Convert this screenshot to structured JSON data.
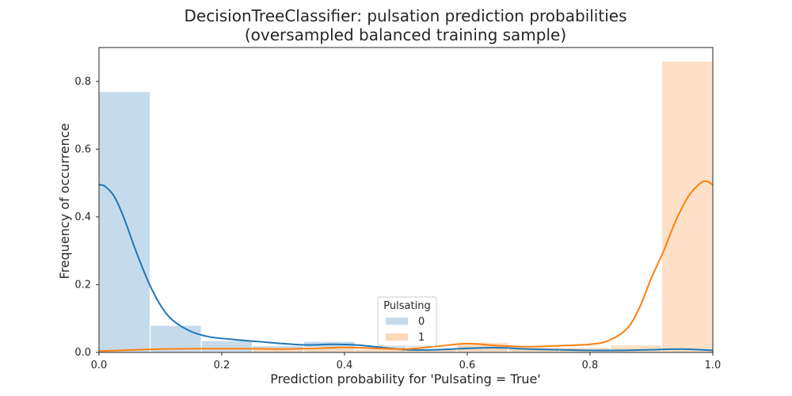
{
  "chart_data": {
    "type": "histogram",
    "title": "DecisionTreeClassifier: pulsation prediction probabilities",
    "subtitle": "(oversampled balanced training sample)",
    "xlabel": "Prediction probability for 'Pulsating = True'",
    "ylabel": "Frequency of occurrence",
    "xlim": [
      0,
      1.0
    ],
    "ylim": [
      0,
      0.9
    ],
    "x_ticks": [
      0.0,
      0.2,
      0.4,
      0.6,
      0.8,
      1.0
    ],
    "x_tick_labels": [
      "0.0",
      "0.2",
      "0.4",
      "0.6",
      "0.8",
      "1.0"
    ],
    "y_ticks": [
      0.0,
      0.2,
      0.4,
      0.6,
      0.8
    ],
    "y_tick_labels": [
      "0.0",
      "0.2",
      "0.4",
      "0.6",
      "0.8"
    ],
    "grid": false,
    "legend": {
      "title": "Pulsating",
      "position": "bottom-center"
    },
    "bin_edges": [
      0.0,
      0.0833,
      0.1667,
      0.25,
      0.3333,
      0.4167,
      0.5,
      0.5833,
      0.6667,
      0.75,
      0.8333,
      0.9167,
      1.0
    ],
    "series": [
      {
        "name": "0",
        "bar_color": "#c5dbec",
        "line_color": "#1f77b4",
        "values": [
          0.77,
          0.08,
          0.035,
          0.02,
          0.033,
          0.018,
          0.01,
          0.02,
          0.015,
          0.01,
          0.005,
          0.005
        ],
        "kde": [
          [
            0.0,
            0.495
          ],
          [
            0.01,
            0.49
          ],
          [
            0.025,
            0.46
          ],
          [
            0.04,
            0.4
          ],
          [
            0.06,
            0.3
          ],
          [
            0.08,
            0.21
          ],
          [
            0.1,
            0.14
          ],
          [
            0.12,
            0.095
          ],
          [
            0.15,
            0.062
          ],
          [
            0.18,
            0.046
          ],
          [
            0.22,
            0.038
          ],
          [
            0.26,
            0.032
          ],
          [
            0.3,
            0.026
          ],
          [
            0.34,
            0.022
          ],
          [
            0.38,
            0.024
          ],
          [
            0.42,
            0.022
          ],
          [
            0.46,
            0.015
          ],
          [
            0.5,
            0.008
          ],
          [
            0.55,
            0.008
          ],
          [
            0.6,
            0.012
          ],
          [
            0.65,
            0.014
          ],
          [
            0.7,
            0.01
          ],
          [
            0.75,
            0.008
          ],
          [
            0.8,
            0.006
          ],
          [
            0.85,
            0.006
          ],
          [
            0.9,
            0.008
          ],
          [
            0.95,
            0.01
          ],
          [
            1.0,
            0.006
          ]
        ]
      },
      {
        "name": "1",
        "bar_color": "#fdd8b9",
        "line_color": "#ff7f0e",
        "values": [
          0.0,
          0.0,
          0.0,
          0.01,
          0.015,
          0.01,
          0.01,
          0.03,
          0.015,
          0.015,
          0.022,
          0.86
        ],
        "kde": [
          [
            0.0,
            0.004
          ],
          [
            0.05,
            0.007
          ],
          [
            0.1,
            0.01
          ],
          [
            0.15,
            0.011
          ],
          [
            0.2,
            0.011
          ],
          [
            0.25,
            0.011
          ],
          [
            0.3,
            0.01
          ],
          [
            0.35,
            0.012
          ],
          [
            0.4,
            0.015
          ],
          [
            0.45,
            0.012
          ],
          [
            0.5,
            0.01
          ],
          [
            0.55,
            0.018
          ],
          [
            0.6,
            0.026
          ],
          [
            0.65,
            0.02
          ],
          [
            0.7,
            0.017
          ],
          [
            0.75,
            0.02
          ],
          [
            0.8,
            0.024
          ],
          [
            0.83,
            0.035
          ],
          [
            0.86,
            0.07
          ],
          [
            0.88,
            0.13
          ],
          [
            0.9,
            0.22
          ],
          [
            0.92,
            0.3
          ],
          [
            0.94,
            0.39
          ],
          [
            0.96,
            0.46
          ],
          [
            0.98,
            0.5
          ],
          [
            0.99,
            0.505
          ],
          [
            1.0,
            0.495
          ]
        ]
      }
    ]
  }
}
